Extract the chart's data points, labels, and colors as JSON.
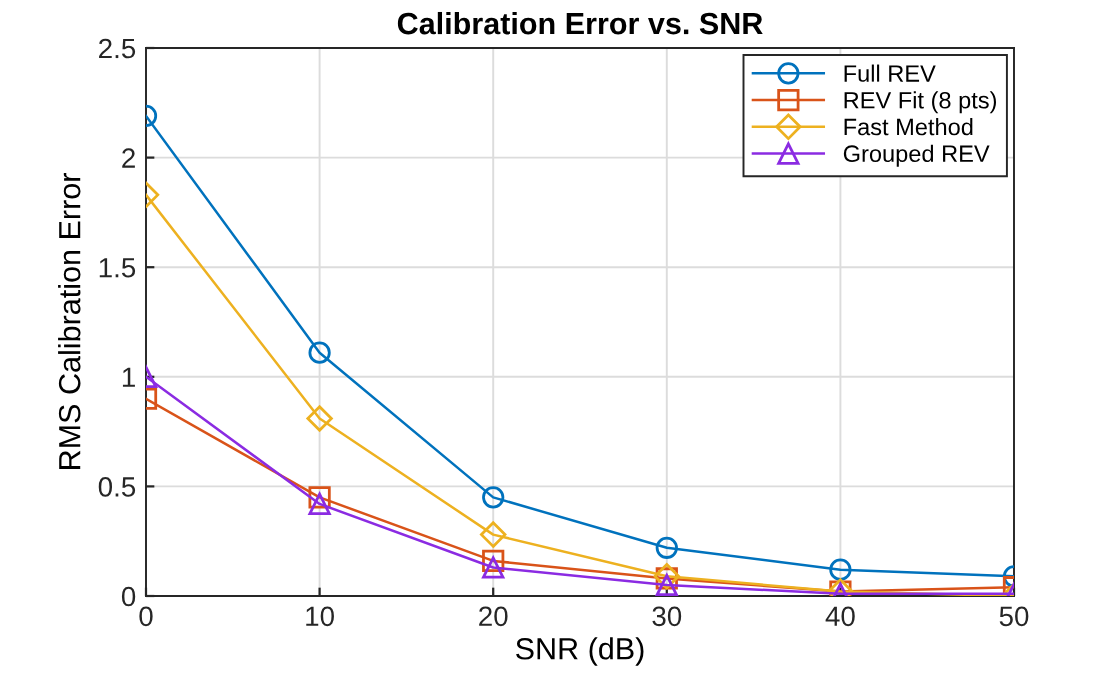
{
  "chart_data": {
    "type": "line",
    "title": "Calibration Error vs. SNR",
    "xlabel": "SNR (dB)",
    "ylabel": "RMS Calibration Error",
    "x": [
      0,
      10,
      20,
      30,
      40,
      50
    ],
    "series": [
      {
        "name": "Full REV",
        "color": "#0072bd",
        "marker": "circle",
        "values": [
          2.19,
          1.11,
          0.45,
          0.22,
          0.12,
          0.09
        ]
      },
      {
        "name": "REV Fit (8 pts)",
        "color": "#d95319",
        "marker": "square",
        "values": [
          0.9,
          0.45,
          0.16,
          0.08,
          0.02,
          0.04
        ]
      },
      {
        "name": "Fast Method",
        "color": "#edb120",
        "marker": "diamond",
        "values": [
          1.83,
          0.81,
          0.28,
          0.09,
          0.02,
          0.0
        ]
      },
      {
        "name": "Grouped REV",
        "color": "#8b2be2",
        "marker": "triangle",
        "values": [
          1.0,
          0.42,
          0.13,
          0.05,
          0.01,
          0.01
        ]
      }
    ],
    "xlim": [
      0,
      50
    ],
    "xticks": [
      0,
      10,
      20,
      30,
      40,
      50
    ],
    "ylim": [
      0,
      2.5
    ],
    "yticks": [
      0,
      0.5,
      1,
      1.5,
      2,
      2.5
    ],
    "grid": true,
    "legend": "top right",
    "line_style": "solid"
  }
}
